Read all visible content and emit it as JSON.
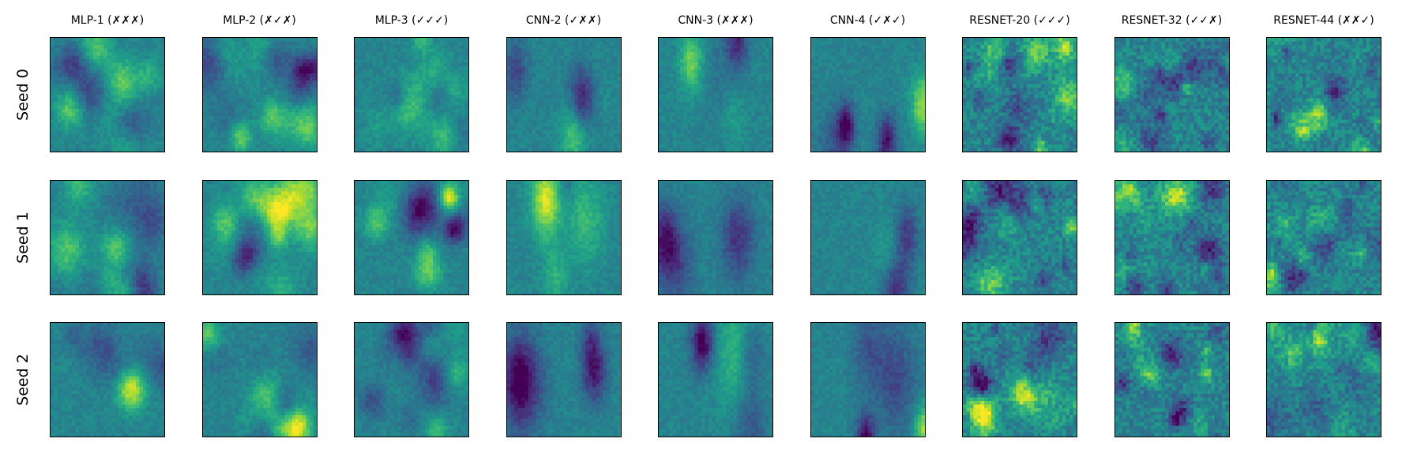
{
  "figure": {
    "columns": [
      {
        "title": "MLP-1 (✗✗✗)"
      },
      {
        "title": "MLP-2 (✗✓✗)"
      },
      {
        "title": "MLP-3 (✓✓✓)"
      },
      {
        "title": "CNN-2 (✓✗✗)"
      },
      {
        "title": "CNN-3 (✗✗✗)"
      },
      {
        "title": "CNN-4 (✓✗✓)"
      },
      {
        "title": "RESNET-20 (✓✓✓)"
      },
      {
        "title": "RESNET-32 (✓✓✗)"
      },
      {
        "title": "RESNET-44 (✗✗✓)"
      }
    ],
    "rows": [
      {
        "label": "Seed 0"
      },
      {
        "label": "Seed 1"
      },
      {
        "label": "Seed 2"
      }
    ],
    "colormap": "viridis",
    "colors": {
      "frame": "#000000",
      "background": "#ffffff"
    }
  }
}
